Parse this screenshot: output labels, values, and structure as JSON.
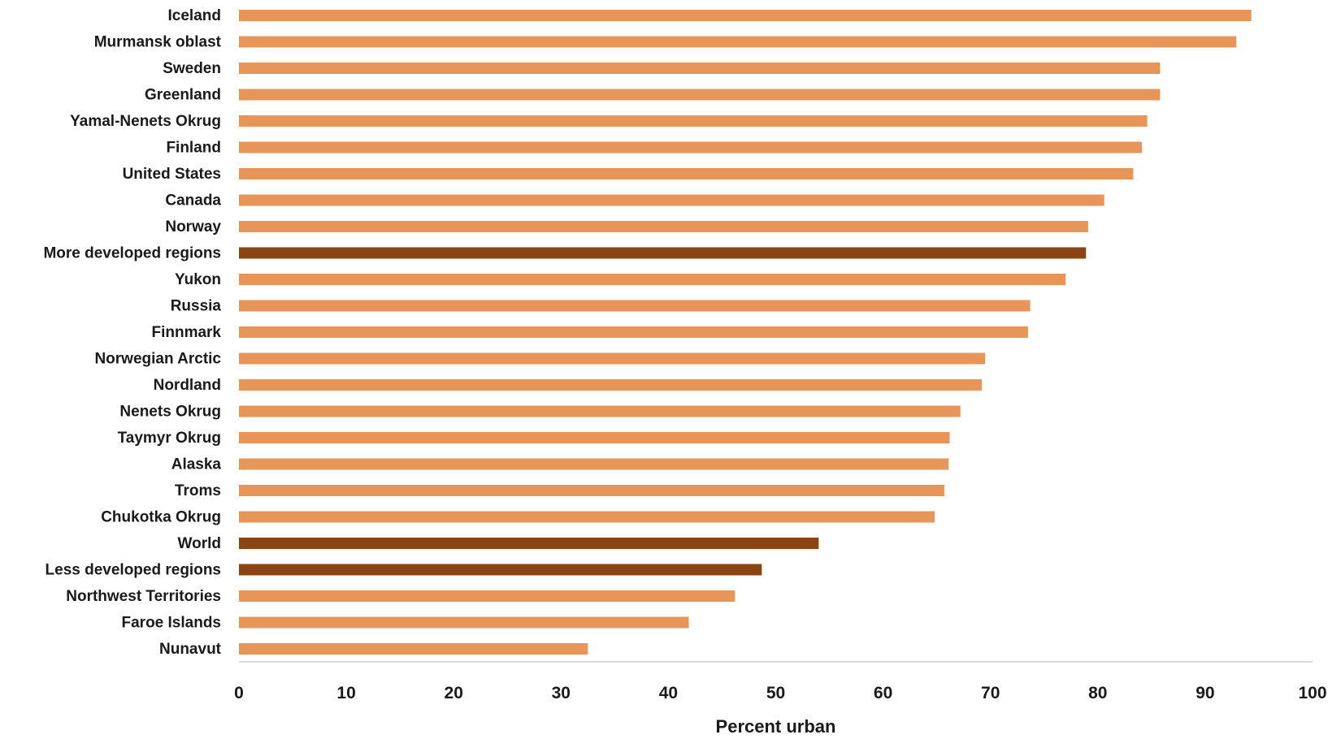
{
  "chart_data": {
    "type": "bar",
    "orientation": "horizontal",
    "title": "",
    "xlabel": "Percent urban",
    "ylabel": "",
    "xlim": [
      0,
      100
    ],
    "xticks": [
      0,
      10,
      20,
      30,
      40,
      50,
      60,
      70,
      80,
      90,
      100
    ],
    "grid": false,
    "categories": [
      "Iceland",
      "Murmansk oblast",
      "Sweden",
      "Greenland",
      "Yamal-Nenets Okrug",
      "Finland",
      "United States",
      "Canada",
      "Norway",
      "More developed regions",
      "Yukon",
      "Russia",
      "Finnmark",
      "Norwegian Arctic",
      "Nordland",
      "Nenets Okrug",
      "Taymyr Okrug",
      "Alaska",
      "Troms",
      "Chukotka Okrug",
      "World",
      "Less developed regions",
      "Northwest Territories",
      "Faroe Islands",
      "Nunavut"
    ],
    "values": [
      94.3,
      92.9,
      85.8,
      85.8,
      84.6,
      84.1,
      83.3,
      80.6,
      79.1,
      78.9,
      77.0,
      73.7,
      73.5,
      69.5,
      69.2,
      67.2,
      66.2,
      66.1,
      65.7,
      64.8,
      54.0,
      48.7,
      46.2,
      41.9,
      32.5
    ],
    "highlighted": [
      "More developed regions",
      "World",
      "Less developed regions"
    ],
    "colors": {
      "bar": "#E8955A",
      "highlight": "#8B4513",
      "axis": "#d9d9d9",
      "text": "#1a1a1a"
    }
  }
}
